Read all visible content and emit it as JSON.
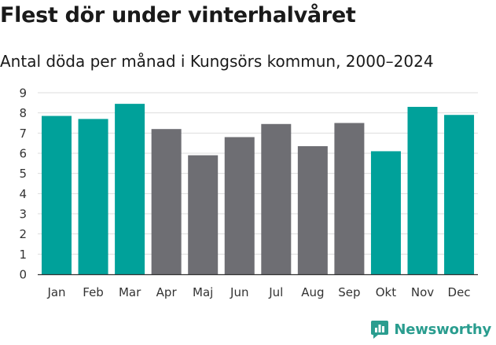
{
  "header": {
    "title": "Flest dör under vinterhalvåret",
    "subtitle": "Antal döda per månad i Kungsörs kommun, 2000–2024"
  },
  "brand": {
    "name": "Newsworthy",
    "color": "#2a9d8f"
  },
  "chart_data": {
    "type": "bar",
    "title": "Flest dör under vinterhalvåret",
    "subtitle": "Antal döda per månad i Kungsörs kommun, 2000–2024",
    "xlabel": "",
    "ylabel": "",
    "categories": [
      "Jan",
      "Feb",
      "Mar",
      "Apr",
      "Maj",
      "Jun",
      "Jul",
      "Aug",
      "Sep",
      "Okt",
      "Nov",
      "Dec"
    ],
    "values": [
      7.85,
      7.7,
      8.45,
      7.2,
      5.9,
      6.8,
      7.45,
      6.35,
      7.5,
      6.1,
      8.3,
      7.9
    ],
    "highlight": [
      true,
      true,
      true,
      false,
      false,
      false,
      false,
      false,
      false,
      true,
      true,
      true
    ],
    "ylim": [
      0,
      9
    ],
    "yticks": [
      0,
      1,
      2,
      3,
      4,
      5,
      6,
      7,
      8,
      9
    ],
    "grid": true,
    "colors": {
      "highlight": "#00a19a",
      "default": "#6e6e73",
      "grid": "#dddddd",
      "axis": "#333333"
    }
  }
}
